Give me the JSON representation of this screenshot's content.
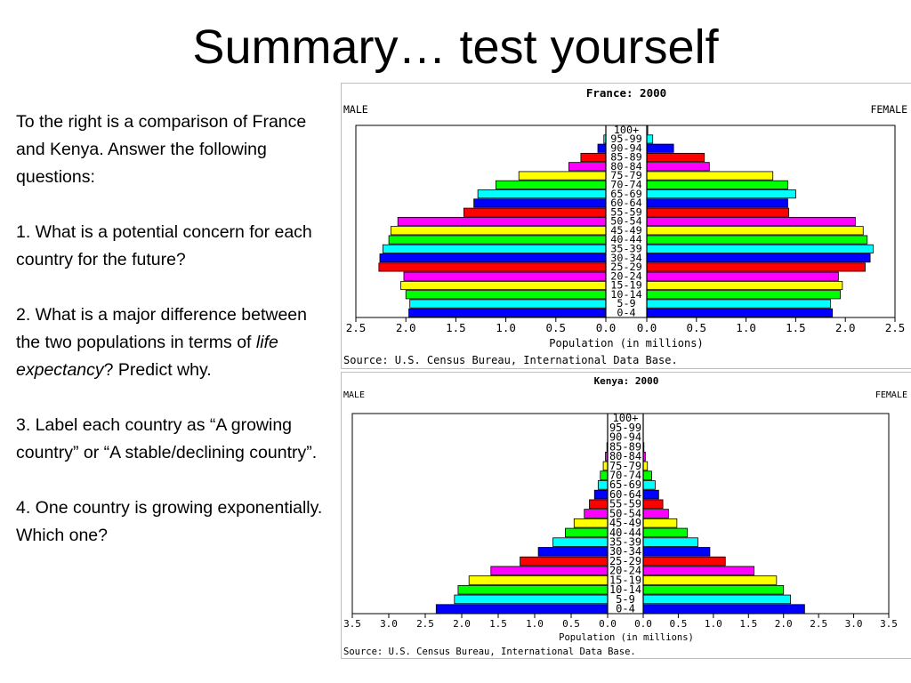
{
  "slide": {
    "title": "Summary… test yourself",
    "intro": "To the right is a comparison of France and Kenya.  Answer the following questions:",
    "q1": "1.  What is a potential concern for each country for the future?",
    "q2_before": "2.  What is a major difference between the two populations in terms of ",
    "q2_em": "life expectancy",
    "q2_after": "?  Predict why.",
    "q3": "3.  Label each country as “A growing country” or  “A stable/declining country”.",
    "q4": "4. One country is growing exponentially.  Which one?"
  },
  "colors": [
    "#0000ff",
    "#00ffff",
    "#00ff00",
    "#ffff00",
    "#ff00ff",
    "#ff0000",
    "#0000ff",
    "#00ffff",
    "#00ff00",
    "#ffff00",
    "#ff00ff",
    "#ff0000",
    "#0000ff",
    "#00ffff",
    "#00ff00",
    "#ffff00",
    "#ff00ff",
    "#ff0000",
    "#0000ff",
    "#00ffff",
    "#00ff00"
  ],
  "chart_data": [
    {
      "type": "bar",
      "orientation": "population-pyramid",
      "title": "France: 2000",
      "left_label": "MALE",
      "right_label": "FEMALE",
      "xlabel": "Population (in millions)",
      "source": "Source: U.S. Census Bureau, International Data Base.",
      "xlim": [
        0,
        2.5
      ],
      "ticks": [
        "2.5",
        "2.0",
        "1.5",
        "1.0",
        "0.5",
        "0.0",
        "0.0",
        "0.5",
        "1.0",
        "1.5",
        "2.0",
        "2.5"
      ],
      "tick_values": [
        2.5,
        2.0,
        1.5,
        1.0,
        0.5,
        0.0,
        0.0,
        0.5,
        1.0,
        1.5,
        2.0,
        2.5
      ],
      "categories": [
        "0-4",
        "5-9",
        "10-14",
        "15-19",
        "20-24",
        "25-29",
        "30-34",
        "35-39",
        "40-44",
        "45-49",
        "50-54",
        "55-59",
        "60-64",
        "65-69",
        "70-74",
        "75-79",
        "80-84",
        "85-89",
        "90-94",
        "95-99",
        "100+"
      ],
      "series": [
        {
          "name": "MALE",
          "values": [
            1.97,
            1.96,
            2.0,
            2.05,
            2.02,
            2.27,
            2.26,
            2.23,
            2.17,
            2.15,
            2.08,
            1.42,
            1.32,
            1.28,
            1.1,
            0.87,
            0.37,
            0.25,
            0.08,
            0.02,
            0.0
          ]
        },
        {
          "name": "FEMALE",
          "values": [
            1.87,
            1.85,
            1.95,
            1.97,
            1.93,
            2.2,
            2.25,
            2.28,
            2.22,
            2.18,
            2.1,
            1.43,
            1.42,
            1.5,
            1.42,
            1.27,
            0.63,
            0.58,
            0.27,
            0.06,
            0.01
          ]
        }
      ]
    },
    {
      "type": "bar",
      "orientation": "population-pyramid",
      "title": "Kenya: 2000",
      "left_label": "MALE",
      "right_label": "FEMALE",
      "xlabel": "Population (in millions)",
      "source": "Source: U.S. Census Bureau, International Data Base.",
      "xlim": [
        0,
        3.5
      ],
      "ticks": [
        "3.5",
        "3.0",
        "2.5",
        "2.0",
        "1.5",
        "1.0",
        "0.5",
        "0.0",
        "0.0",
        "0.5",
        "1.0",
        "1.5",
        "2.0",
        "2.5",
        "3.0",
        "3.5"
      ],
      "tick_values": [
        3.5,
        3.0,
        2.5,
        2.0,
        1.5,
        1.0,
        0.5,
        0.0,
        0.0,
        0.5,
        1.0,
        1.5,
        2.0,
        2.5,
        3.0,
        3.5
      ],
      "categories": [
        "0-4",
        "5-9",
        "10-14",
        "15-19",
        "20-24",
        "25-29",
        "30-34",
        "35-39",
        "40-44",
        "45-49",
        "50-54",
        "55-59",
        "60-64",
        "65-69",
        "70-74",
        "75-79",
        "80-84",
        "85-89",
        "90-94",
        "95-99",
        "100+"
      ],
      "series": [
        {
          "name": "MALE",
          "values": [
            2.35,
            2.1,
            2.05,
            1.9,
            1.6,
            1.2,
            0.95,
            0.75,
            0.58,
            0.46,
            0.32,
            0.25,
            0.18,
            0.13,
            0.1,
            0.06,
            0.03,
            0.01,
            0.0,
            0.0,
            0.0
          ]
        },
        {
          "name": "FEMALE",
          "values": [
            2.3,
            2.1,
            2.0,
            1.9,
            1.58,
            1.17,
            0.95,
            0.78,
            0.63,
            0.48,
            0.36,
            0.28,
            0.22,
            0.17,
            0.12,
            0.06,
            0.03,
            0.01,
            0.0,
            0.0,
            0.0
          ]
        }
      ]
    }
  ]
}
